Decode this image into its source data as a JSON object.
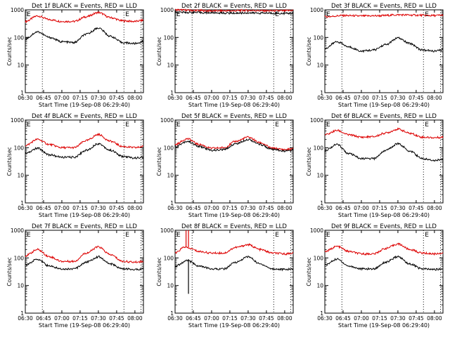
{
  "colors": {
    "events": "#000000",
    "lld": "#dd0000",
    "background": "#ffffff",
    "axes": "#000000"
  },
  "chart_data": [
    {
      "type": "line",
      "title": "Det 1f BLACK = Events, RED = LLD",
      "corner_marks": [
        "E",
        "E"
      ],
      "xlabel": "Start Time (19-Sep-08 06:29:40)",
      "ylabel": "Counts/sec",
      "x_ticks": [
        "06:30",
        "06:45",
        "07:00",
        "07:15",
        "07:30",
        "07:45",
        "08:00"
      ],
      "y_ticks": [
        "1",
        "10",
        "100",
        "1000"
      ],
      "yscale": "log",
      "ylim": [
        1,
        1000
      ],
      "xlim": [
        "06:30",
        "08:07"
      ],
      "vlines": [
        "06:44",
        "07:51",
        "08:05"
      ],
      "series": [
        {
          "color": "red",
          "x": [
            "06:30",
            "06:40",
            "06:50",
            "07:00",
            "07:10",
            "07:20",
            "07:30",
            "07:40",
            "07:50",
            "08:00",
            "08:07"
          ],
          "values": [
            380,
            600,
            440,
            380,
            380,
            560,
            800,
            520,
            400,
            380,
            420
          ]
        },
        {
          "color": "black",
          "x": [
            "06:30",
            "06:40",
            "06:50",
            "07:00",
            "07:10",
            "07:20",
            "07:30",
            "07:40",
            "07:50",
            "08:00",
            "08:07"
          ],
          "values": [
            90,
            160,
            100,
            70,
            65,
            130,
            220,
            110,
            65,
            60,
            70
          ]
        }
      ]
    },
    {
      "type": "line",
      "title": "Det 2f BLACK = Events, RED = LLD",
      "corner_marks": [
        "E",
        "E"
      ],
      "xlabel": "Start Time (19-Sep-08 06:29:40)",
      "ylabel": "Counts/sec",
      "x_ticks": [
        "06:30",
        "06:45",
        "07:00",
        "07:15",
        "07:30",
        "07:45",
        "08:00"
      ],
      "y_ticks": [
        "1",
        "10",
        "100",
        "1000"
      ],
      "yscale": "log",
      "ylim": [
        1,
        1000
      ],
      "xlim": [
        "06:30",
        "08:07"
      ],
      "vlines": [
        "06:44",
        "07:51",
        "08:05"
      ],
      "series": [
        {
          "color": "red",
          "x": [
            "06:30",
            "06:45",
            "07:00",
            "07:15",
            "07:30",
            "07:45",
            "08:00",
            "08:07"
          ],
          "values": [
            1000,
            950,
            920,
            920,
            950,
            920,
            920,
            960
          ]
        },
        {
          "color": "black",
          "x": [
            "06:30",
            "06:45",
            "07:00",
            "07:15",
            "07:30",
            "07:45",
            "08:00",
            "08:07"
          ],
          "values": [
            820,
            800,
            780,
            760,
            770,
            760,
            740,
            760
          ]
        }
      ]
    },
    {
      "type": "line",
      "title": "Det 3f BLACK = Events, RED = LLD",
      "corner_marks": [
        "E",
        "E"
      ],
      "xlabel": "Start Time (19-Sep-08 06:29:40)",
      "ylabel": "Counts/sec",
      "x_ticks": [
        "06:30",
        "06:45",
        "07:00",
        "07:15",
        "07:30",
        "07:45",
        "08:00"
      ],
      "y_ticks": [
        "1",
        "10",
        "100",
        "1000"
      ],
      "yscale": "log",
      "ylim": [
        1,
        1000
      ],
      "xlim": [
        "06:30",
        "08:07"
      ],
      "vlines": [
        "06:44",
        "07:51",
        "08:05"
      ],
      "series": [
        {
          "color": "red",
          "x": [
            "06:30",
            "06:45",
            "07:00",
            "07:15",
            "07:30",
            "07:45",
            "08:00",
            "08:07"
          ],
          "values": [
            560,
            620,
            600,
            610,
            660,
            640,
            620,
            640
          ]
        },
        {
          "color": "black",
          "x": [
            "06:30",
            "06:40",
            "06:50",
            "07:00",
            "07:10",
            "07:20",
            "07:30",
            "07:40",
            "07:50",
            "08:00",
            "08:07"
          ],
          "values": [
            40,
            70,
            45,
            32,
            35,
            55,
            95,
            60,
            35,
            32,
            35
          ]
        }
      ]
    },
    {
      "type": "line",
      "title": "Det 4f BLACK = Events, RED = LLD",
      "corner_marks": [
        "E",
        "E"
      ],
      "xlabel": "Start Time (19-Sep-08 06:29:40)",
      "ylabel": "Counts/sec",
      "x_ticks": [
        "06:30",
        "06:45",
        "07:00",
        "07:15",
        "07:30",
        "07:45",
        "08:00"
      ],
      "y_ticks": [
        "1",
        "10",
        "100",
        "1000"
      ],
      "yscale": "log",
      "ylim": [
        1,
        1000
      ],
      "xlim": [
        "06:30",
        "08:07"
      ],
      "vlines": [
        "06:44",
        "07:51",
        "08:05"
      ],
      "series": [
        {
          "color": "red",
          "x": [
            "06:30",
            "06:40",
            "06:50",
            "07:00",
            "07:10",
            "07:20",
            "07:30",
            "07:40",
            "07:50",
            "08:00",
            "08:07"
          ],
          "values": [
            120,
            200,
            130,
            100,
            100,
            180,
            300,
            170,
            110,
            100,
            110
          ]
        },
        {
          "color": "black",
          "x": [
            "06:30",
            "06:40",
            "06:50",
            "07:00",
            "07:10",
            "07:20",
            "07:30",
            "07:40",
            "07:50",
            "08:00",
            "08:07"
          ],
          "values": [
            60,
            95,
            55,
            45,
            45,
            80,
            140,
            80,
            48,
            42,
            45
          ]
        }
      ]
    },
    {
      "type": "line",
      "title": "Det 5f BLACK = Events, RED = LLD",
      "corner_marks": [
        "E",
        "E"
      ],
      "xlabel": "Start Time (19-Sep-08 06:29:40)",
      "ylabel": "Counts/sec",
      "x_ticks": [
        "06:30",
        "06:45",
        "07:00",
        "07:15",
        "07:30",
        "07:45",
        "08:00"
      ],
      "y_ticks": [
        "1",
        "10",
        "100",
        "1000"
      ],
      "yscale": "log",
      "ylim": [
        1,
        1000
      ],
      "xlim": [
        "06:30",
        "08:07"
      ],
      "vlines": [
        "06:44",
        "07:51",
        "08:05"
      ],
      "series": [
        {
          "color": "red",
          "x": [
            "06:30",
            "06:40",
            "06:50",
            "07:00",
            "07:10",
            "07:20",
            "07:30",
            "07:40",
            "07:50",
            "08:00",
            "08:07"
          ],
          "values": [
            130,
            210,
            130,
            95,
            100,
            170,
            240,
            150,
            95,
            85,
            90
          ]
        },
        {
          "color": "black",
          "x": [
            "06:30",
            "06:40",
            "06:50",
            "07:00",
            "07:10",
            "07:20",
            "07:30",
            "07:40",
            "07:50",
            "08:00",
            "08:07"
          ],
          "values": [
            110,
            170,
            110,
            80,
            85,
            140,
            200,
            130,
            85,
            75,
            80
          ]
        }
      ]
    },
    {
      "type": "line",
      "title": "Det 6f BLACK = Events, RED = LLD",
      "corner_marks": [
        "E",
        "E"
      ],
      "xlabel": "Start Time (19-Sep-08 06:29:40)",
      "ylabel": "Counts/sec",
      "x_ticks": [
        "06:30",
        "06:45",
        "07:00",
        "07:15",
        "07:30",
        "07:45",
        "08:00"
      ],
      "y_ticks": [
        "1",
        "10",
        "100",
        "1000"
      ],
      "yscale": "log",
      "ylim": [
        1,
        1000
      ],
      "xlim": [
        "06:30",
        "08:07"
      ],
      "vlines": [
        "06:44",
        "07:51",
        "08:05"
      ],
      "series": [
        {
          "color": "red",
          "x": [
            "06:30",
            "06:40",
            "06:50",
            "07:00",
            "07:10",
            "07:20",
            "07:30",
            "07:40",
            "07:50",
            "08:00",
            "08:07"
          ],
          "values": [
            290,
            420,
            290,
            240,
            250,
            340,
            470,
            330,
            240,
            230,
            240
          ]
        },
        {
          "color": "black",
          "x": [
            "06:30",
            "06:40",
            "06:50",
            "07:00",
            "07:10",
            "07:20",
            "07:30",
            "07:40",
            "07:50",
            "08:00",
            "08:07"
          ],
          "values": [
            80,
            130,
            60,
            40,
            40,
            80,
            140,
            75,
            40,
            35,
            38
          ]
        }
      ]
    },
    {
      "type": "line",
      "title": "Det 7f BLACK = Events, RED = LLD",
      "corner_marks": [
        "E",
        "E"
      ],
      "xlabel": "Start Time (19-Sep-08 06:29:40)",
      "ylabel": "Counts/sec",
      "x_ticks": [
        "06:30",
        "06:45",
        "07:00",
        "07:15",
        "07:30",
        "07:45",
        "08:00"
      ],
      "y_ticks": [
        "1",
        "10",
        "100",
        "1000"
      ],
      "yscale": "log",
      "ylim": [
        1,
        1000
      ],
      "xlim": [
        "06:30",
        "08:07"
      ],
      "vlines": [
        "06:44",
        "07:51",
        "08:05"
      ],
      "series": [
        {
          "color": "red",
          "x": [
            "06:30",
            "06:40",
            "06:50",
            "07:00",
            "07:10",
            "07:20",
            "07:30",
            "07:40",
            "07:50",
            "08:00",
            "08:07"
          ],
          "values": [
            120,
            200,
            110,
            75,
            75,
            150,
            250,
            130,
            75,
            70,
            75
          ]
        },
        {
          "color": "black",
          "x": [
            "06:30",
            "06:40",
            "06:50",
            "07:00",
            "07:10",
            "07:20",
            "07:30",
            "07:40",
            "07:50",
            "08:00",
            "08:07"
          ],
          "values": [
            55,
            90,
            50,
            40,
            40,
            70,
            110,
            60,
            40,
            38,
            40
          ]
        }
      ]
    },
    {
      "type": "line",
      "title": "Det 8f BLACK = Events, RED = LLD",
      "corner_marks": [
        "E",
        "E"
      ],
      "xlabel": "Start Time (19-Sep-08 06:29:40)",
      "ylabel": "Counts/sec",
      "x_ticks": [
        "06:30",
        "06:45",
        "07:00",
        "07:15",
        "07:30",
        "07:45",
        "08:00"
      ],
      "y_ticks": [
        "1",
        "10",
        "100",
        "1000"
      ],
      "yscale": "log",
      "ylim": [
        1,
        1000
      ],
      "xlim": [
        "06:30",
        "08:07"
      ],
      "vlines": [
        "06:44",
        "07:51",
        "08:05"
      ],
      "spikes": [
        {
          "color": "red",
          "x": "06:39",
          "values": [
            250,
            1000
          ]
        },
        {
          "color": "red",
          "x": "06:41",
          "values": [
            250,
            1000
          ]
        },
        {
          "color": "black",
          "x": "06:41",
          "values": [
            5,
            90
          ]
        }
      ],
      "series": [
        {
          "color": "red",
          "x": [
            "06:30",
            "06:38",
            "06:42",
            "06:50",
            "07:00",
            "07:10",
            "07:20",
            "07:30",
            "07:40",
            "07:50",
            "08:00",
            "08:07"
          ],
          "values": [
            150,
            250,
            220,
            170,
            150,
            150,
            240,
            300,
            200,
            150,
            140,
            150
          ]
        },
        {
          "color": "black",
          "x": [
            "06:30",
            "06:40",
            "06:50",
            "07:00",
            "07:10",
            "07:20",
            "07:30",
            "07:40",
            "07:50",
            "08:00",
            "08:07"
          ],
          "values": [
            50,
            80,
            50,
            40,
            40,
            70,
            110,
            60,
            40,
            38,
            40
          ]
        }
      ]
    },
    {
      "type": "line",
      "title": "Det 9f BLACK = Events, RED = LLD",
      "corner_marks": [
        "E",
        "E"
      ],
      "xlabel": "Start Time (19-Sep-08 06:29:40)",
      "ylabel": "Counts/sec",
      "x_ticks": [
        "06:30",
        "06:45",
        "07:00",
        "07:15",
        "07:30",
        "07:45",
        "08:00"
      ],
      "y_ticks": [
        "1",
        "10",
        "100",
        "1000"
      ],
      "yscale": "log",
      "ylim": [
        1,
        1000
      ],
      "xlim": [
        "06:30",
        "08:07"
      ],
      "vlines": [
        "06:44",
        "07:51",
        "08:05"
      ],
      "series": [
        {
          "color": "red",
          "x": [
            "06:30",
            "06:40",
            "06:50",
            "07:00",
            "07:10",
            "07:20",
            "07:30",
            "07:40",
            "07:50",
            "08:00",
            "08:07"
          ],
          "values": [
            170,
            260,
            170,
            140,
            140,
            220,
            320,
            200,
            150,
            140,
            150
          ]
        },
        {
          "color": "black",
          "x": [
            "06:30",
            "06:40",
            "06:50",
            "07:00",
            "07:10",
            "07:20",
            "07:30",
            "07:40",
            "07:50",
            "08:00",
            "08:07"
          ],
          "values": [
            55,
            90,
            50,
            40,
            40,
            70,
            110,
            60,
            40,
            38,
            40
          ]
        }
      ]
    }
  ]
}
